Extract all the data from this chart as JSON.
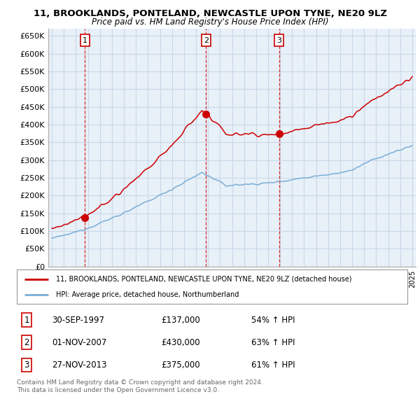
{
  "title_line1": "11, BROOKLANDS, PONTELAND, NEWCASTLE UPON TYNE, NE20 9LZ",
  "title_line2": "Price paid vs. HM Land Registry's House Price Index (HPI)",
  "ylim": [
    0,
    670000
  ],
  "yticks": [
    0,
    50000,
    100000,
    150000,
    200000,
    250000,
    300000,
    350000,
    400000,
    450000,
    500000,
    550000,
    600000,
    650000
  ],
  "xlim_start": 1994.7,
  "xlim_end": 2025.3,
  "sale_dates": [
    1997.75,
    2007.83,
    2013.92
  ],
  "sale_prices": [
    137000,
    430000,
    375000
  ],
  "sale_labels": [
    "1",
    "2",
    "3"
  ],
  "legend_red": "11, BROOKLANDS, PONTELAND, NEWCASTLE UPON TYNE, NE20 9LZ (detached house)",
  "legend_blue": "HPI: Average price, detached house, Northumberland",
  "table_rows": [
    {
      "num": "1",
      "date": "30-SEP-1997",
      "price": "£137,000",
      "hpi": "54% ↑ HPI"
    },
    {
      "num": "2",
      "date": "01-NOV-2007",
      "price": "£430,000",
      "hpi": "63% ↑ HPI"
    },
    {
      "num": "3",
      "date": "27-NOV-2013",
      "price": "£375,000",
      "hpi": "61% ↑ HPI"
    }
  ],
  "footer": "Contains HM Land Registry data © Crown copyright and database right 2024.\nThis data is licensed under the Open Government Licence v3.0.",
  "red_color": "#cc0000",
  "blue_color": "#7aaed6",
  "grid_color": "#c8d8e8",
  "chart_bg": "#e8f0f8",
  "background_color": "#ffffff"
}
